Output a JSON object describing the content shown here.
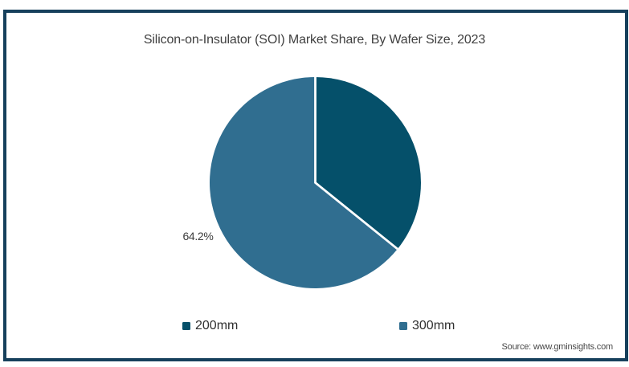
{
  "title": "Silicon-on-Insulator (SOI) Market Share, By Wafer Size, 2023",
  "source": "Source: www.gminsights.com",
  "colors": {
    "frame_border": "#16405c",
    "slice_200mm": "#05506a",
    "slice_300mm": "#306e90",
    "slice_divider": "#ffffff"
  },
  "legend": [
    {
      "label": "200mm",
      "color": "#05506a"
    },
    {
      "label": "300mm",
      "color": "#306e90"
    }
  ],
  "chart_data": {
    "type": "pie",
    "title": "Silicon-on-Insulator (SOI) Market Share, By Wafer Size, 2023",
    "categories": [
      "200mm",
      "300mm"
    ],
    "values": [
      35.8,
      64.2
    ],
    "colors": [
      "#05506a",
      "#306e90"
    ],
    "start_angle_deg": 0,
    "direction": "clockwise",
    "data_labels": [
      {
        "slice": "300mm",
        "text": "64.2%",
        "shown": true
      },
      {
        "slice": "200mm",
        "text": "",
        "shown": false
      }
    ],
    "legend_position": "bottom",
    "source": "Source: www.gminsights.com"
  }
}
